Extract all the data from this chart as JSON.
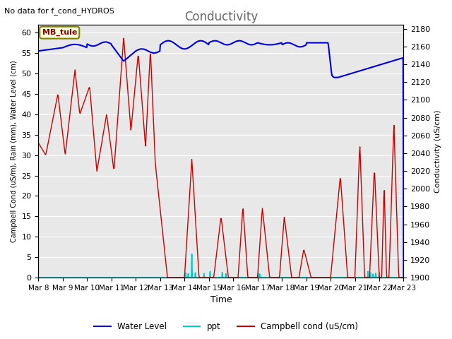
{
  "title": "Conductivity",
  "top_left_text": "No data for f_cond_HYDROS",
  "ylabel_left": "Campbell Cond (uS/m), Rain (mm), Water Level (cm)",
  "ylabel_right": "Conductivity (uS/cm)",
  "xlabel": "Time",
  "ylim_left": [
    0,
    62
  ],
  "ylim_right": [
    1900,
    2185
  ],
  "background_color": "#e8e8e8",
  "x_tick_labels": [
    "Mar 8",
    "Mar 9",
    "Mar 10",
    "Mar 11",
    "Mar 12",
    "Mar 13",
    "Mar 14",
    "Mar 15",
    "Mar 16",
    "Mar 17",
    "Mar 18",
    "Mar 19",
    "Mar 20",
    "Mar 21",
    "Mar 22",
    "Mar 23"
  ],
  "annotation_box": "MB_tule",
  "water_level_color": "#0000dd",
  "ppt_color": "#00cccc",
  "campbell_color": "#cc0000",
  "grid_color": "#ffffff",
  "title_color": "#666666",
  "fig_bg": "#ffffff",
  "plot_bg": "#e8e8e8"
}
